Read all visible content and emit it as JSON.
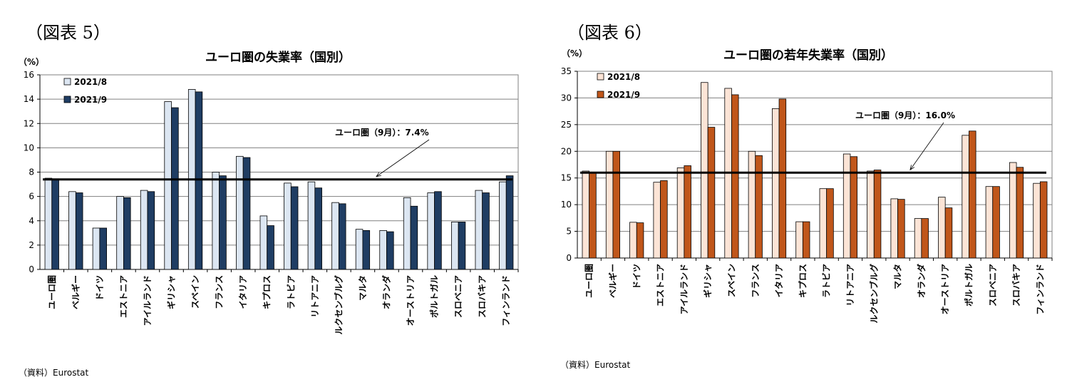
{
  "figures": [
    {
      "label": "（図表 5）",
      "source": "（資料）Eurostat"
    },
    {
      "label": "（図表 6）",
      "source": "（資料）Eurostat"
    }
  ],
  "chart_data": [
    {
      "type": "bar",
      "title": "ユーロ圏の失業率（国別）",
      "ylabel": "（%）",
      "ylim": [
        0,
        16
      ],
      "yticks": [
        0,
        2,
        4,
        6,
        8,
        10,
        12,
        14,
        16
      ],
      "categories": [
        "ユーロ圏",
        "ベルギー",
        "ドイツ",
        "エストニア",
        "アイルランド",
        "ギリシャ",
        "スペイン",
        "フランス",
        "イタリア",
        "キプロス",
        "ラトビア",
        "リトアニア",
        "ルクセンブルグ",
        "マルタ",
        "オランダ",
        "オーストリア",
        "ポルトガル",
        "スロベニア",
        "スロバキア",
        "フィンランド"
      ],
      "series": [
        {
          "name": "2021/8",
          "color": "#dce6f2",
          "values": [
            7.5,
            6.4,
            3.4,
            6.0,
            6.5,
            13.8,
            14.8,
            8.0,
            9.3,
            4.4,
            7.1,
            7.2,
            5.5,
            3.3,
            3.2,
            5.9,
            6.3,
            3.9,
            6.5,
            7.2
          ]
        },
        {
          "name": "2021/9",
          "color": "#1f3d63",
          "values": [
            7.4,
            6.3,
            3.4,
            5.9,
            6.4,
            13.3,
            14.6,
            7.7,
            9.2,
            3.6,
            6.8,
            6.7,
            5.4,
            3.2,
            3.1,
            5.2,
            6.4,
            3.9,
            6.3,
            7.7
          ]
        }
      ],
      "reference_line": {
        "value": 7.4,
        "label": "ユーロ圏（9月）：7.4%"
      },
      "legend": "top-left",
      "grid": true
    },
    {
      "type": "bar",
      "title": "ユーロ圏の若年失業率（国別）",
      "ylabel": "（%）",
      "ylim": [
        0,
        35
      ],
      "yticks": [
        0,
        5,
        10,
        15,
        20,
        25,
        30,
        35
      ],
      "categories": [
        "ユーロ圏",
        "ベルギー",
        "ドイツ",
        "エストニア",
        "アイルランド",
        "ギリシャ",
        "スペイン",
        "フランス",
        "イタリア",
        "キプロス",
        "ラトビア",
        "リトアニア",
        "ルクセンブルグ",
        "マルタ",
        "オランダ",
        "オーストリア",
        "ポルトガル",
        "スロベニア",
        "スロバキア",
        "フィンランド"
      ],
      "series": [
        {
          "name": "2021/8",
          "color": "#fce4d6",
          "values": [
            16.3,
            20.0,
            6.7,
            14.2,
            16.9,
            32.9,
            31.8,
            20.0,
            28.0,
            6.8,
            13.0,
            19.5,
            16.3,
            11.1,
            7.4,
            11.4,
            23.0,
            13.4,
            17.9,
            14.0
          ]
        },
        {
          "name": "2021/9",
          "color": "#c0561a",
          "values": [
            16.0,
            20.0,
            6.6,
            14.5,
            17.3,
            24.5,
            30.6,
            19.2,
            29.8,
            6.8,
            13.0,
            19.0,
            16.5,
            11.0,
            7.4,
            9.4,
            23.8,
            13.4,
            17.0,
            14.3
          ]
        }
      ],
      "reference_line": {
        "value": 16.0,
        "label": "ユーロ圏（9月）：16.0%"
      },
      "legend": "top-left",
      "grid": true
    }
  ]
}
